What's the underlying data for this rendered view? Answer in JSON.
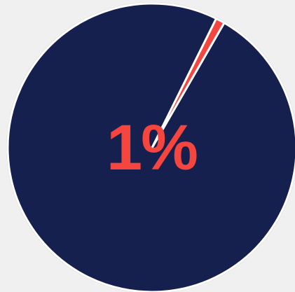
{
  "chart_data": {
    "type": "pie",
    "center_label": "1%",
    "slices": [
      {
        "value": 99,
        "color": "#16204f"
      },
      {
        "value": 1,
        "color": "#f4453f"
      }
    ],
    "start_angle_deg": 30
  },
  "colors": {
    "background": "#f0f0f0",
    "slice_border": "#ffffff",
    "outer_border": "#d9d9d9",
    "label": "#f4453f"
  }
}
